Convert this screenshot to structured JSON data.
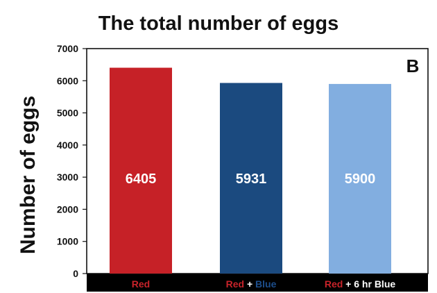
{
  "chart_data": {
    "type": "bar",
    "title": "The total number of eggs",
    "ylabel": "Number of eggs",
    "xlabel": "",
    "panel_label": "B",
    "ylim": [
      0,
      7000
    ],
    "yticks": [
      0,
      1000,
      2000,
      3000,
      4000,
      5000,
      6000,
      7000
    ],
    "categories": [
      {
        "parts": [
          {
            "text": "Red",
            "color": "#c8232a"
          }
        ]
      },
      {
        "parts": [
          {
            "text": "Red",
            "color": "#c8232a"
          },
          {
            "text": " + ",
            "color": "#ffffff"
          },
          {
            "text": "Blue",
            "color": "#1d4e8c"
          }
        ]
      },
      {
        "parts": [
          {
            "text": "Red",
            "color": "#c8232a"
          },
          {
            "text": " + 6 hr Blue",
            "color": "#ffffff"
          }
        ]
      }
    ],
    "values": [
      6405,
      5931,
      5900
    ],
    "bar_colors": [
      "#c62127",
      "#1b4a7f",
      "#82aee0"
    ],
    "value_label_colors": [
      "#ffffff",
      "#ffffff",
      "#ffffff"
    ],
    "category_band_color": "#000000",
    "grid": false,
    "legend": "none"
  }
}
